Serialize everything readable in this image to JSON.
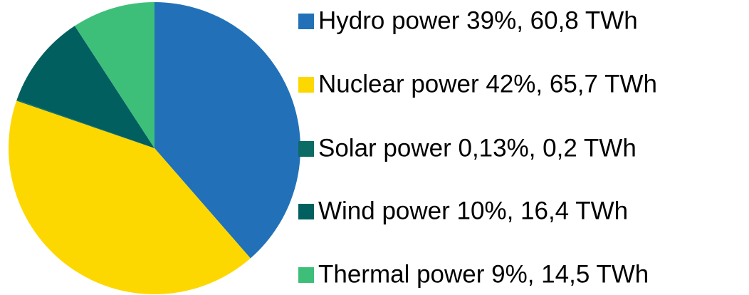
{
  "chart_data": {
    "type": "pie",
    "categories": [
      "Hydro power 39%, 60,8  TWh",
      "Nuclear power 42%, 65,7 TWh",
      "Solar power 0,13%, 0,2 TWh",
      "Wind power 10%, 16,4 TWh",
      "Thermal power 9%, 14,5 TWh"
    ],
    "values": [
      60.8,
      65.7,
      0.2,
      16.4,
      14.5
    ],
    "colors": [
      "#2271b8",
      "#fdd800",
      "#0d6b66",
      "#015f5f",
      "#3dbf7a"
    ],
    "legend": "right"
  }
}
